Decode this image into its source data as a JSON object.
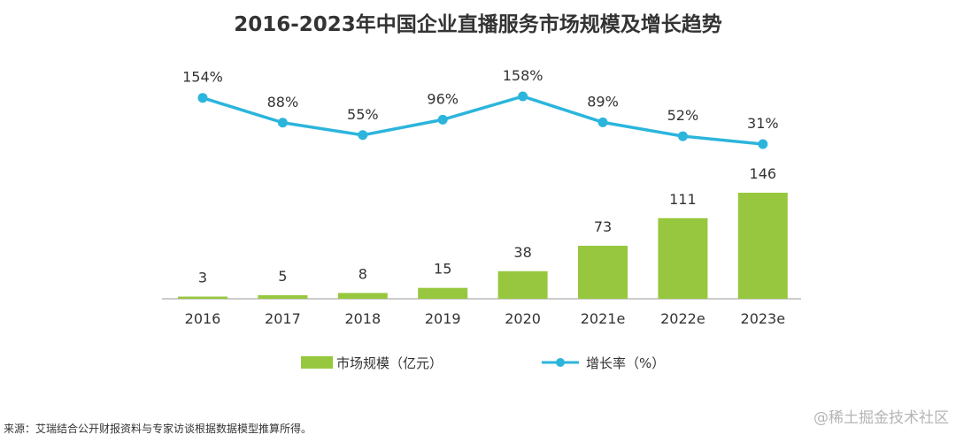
{
  "chart_data": {
    "type": "bar",
    "title": "2016-2023年中国企业直播服务市场规模及增长趋势",
    "categories": [
      "2016",
      "2017",
      "2018",
      "2019",
      "2020",
      "2021e",
      "2022e",
      "2023e"
    ],
    "series": [
      {
        "name": "市场规模（亿元）",
        "type": "bar",
        "values": [
          3,
          5,
          8,
          15,
          38,
          73,
          111,
          146
        ],
        "labels": [
          "3",
          "5",
          "8",
          "15",
          "38",
          "73",
          "111",
          "146"
        ],
        "ylim": [
          0,
          146
        ]
      },
      {
        "name": "增长率（%）",
        "type": "line",
        "values": [
          154,
          88,
          55,
          96,
          158,
          89,
          52,
          31
        ],
        "labels": [
          "154%",
          "88%",
          "55%",
          "96%",
          "158%",
          "89%",
          "52%",
          "31%"
        ],
        "ylim": [
          31,
          158
        ]
      }
    ],
    "legend": {
      "position": "bottom-center",
      "entries": [
        "市场规模（亿元）",
        "增长率（%）"
      ]
    },
    "grid": false,
    "xlabel": "",
    "ylabel": ""
  },
  "colors": {
    "bar": "#97c73e",
    "line": "#2bb5dc",
    "axis": "#999999",
    "text": "#333333"
  },
  "source": "来源：艾瑞结合公开财报资料与专家访谈根据数据模型推算所得。",
  "watermark": "@稀土掘金技术社区"
}
